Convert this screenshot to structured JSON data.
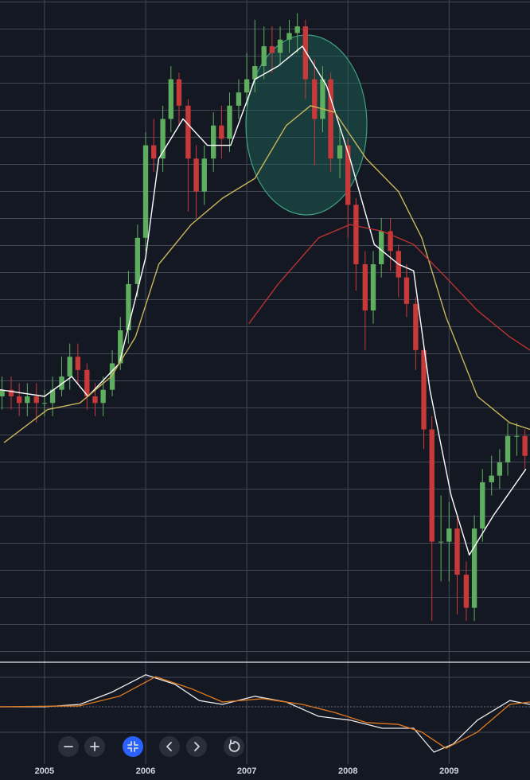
{
  "chart_data": [
    {
      "type": "candlestick",
      "x": [
        2004.58,
        2004.67,
        2004.75,
        2004.83,
        2004.92,
        2005.0,
        2005.08,
        2005.17,
        2005.25,
        2005.33,
        2005.42,
        2005.5,
        2005.58,
        2005.67,
        2005.75,
        2005.83,
        2005.92,
        2006.0,
        2006.08,
        2006.17,
        2006.25,
        2006.33,
        2006.42,
        2006.5,
        2006.58,
        2006.67,
        2006.75,
        2006.83,
        2006.92,
        2007.0,
        2007.08,
        2007.17,
        2007.25,
        2007.33,
        2007.42,
        2007.5,
        2007.58,
        2007.67,
        2007.75,
        2007.83,
        2007.92,
        2008.0,
        2008.08,
        2008.17,
        2008.25,
        2008.33,
        2008.42,
        2008.5,
        2008.58,
        2008.67,
        2008.75,
        2008.83,
        2008.92,
        2009.0,
        2009.08,
        2009.17,
        2009.25,
        2009.33,
        2009.42,
        2009.5,
        2009.58,
        2009.67,
        2009.75
      ],
      "open": [
        40,
        41,
        40,
        39,
        40,
        39,
        39,
        41,
        43,
        46,
        44,
        40,
        39,
        41,
        45,
        50,
        57,
        64,
        78,
        76,
        82,
        88,
        84,
        76,
        71,
        76,
        81,
        79,
        84,
        86,
        88,
        90,
        93,
        92,
        94,
        95,
        96,
        88,
        82,
        88,
        76,
        78,
        69,
        60,
        53,
        60,
        65,
        62,
        58,
        54,
        47,
        35,
        18,
        18,
        20,
        13,
        8,
        20,
        27,
        28,
        30,
        34,
        34
      ],
      "high": [
        43,
        43,
        42,
        42,
        42,
        41,
        43,
        46,
        48,
        48,
        45,
        42,
        43,
        47,
        52,
        59,
        66,
        80,
        82,
        84,
        90,
        89,
        85,
        78,
        78,
        83,
        84,
        86,
        88,
        92,
        97,
        96,
        96,
        96,
        97,
        98,
        97,
        91,
        90,
        89,
        81,
        79,
        70,
        62,
        62,
        67,
        67,
        63,
        60,
        55,
        48,
        37,
        25,
        24,
        22,
        15,
        22,
        29,
        31,
        32,
        36,
        36,
        35
      ],
      "low": [
        38,
        38,
        37,
        37,
        36,
        37,
        37,
        40,
        41,
        42,
        38,
        37,
        37,
        40,
        44,
        48,
        55,
        62,
        74,
        74,
        80,
        81,
        68,
        67,
        69,
        74,
        76,
        77,
        82,
        84,
        86,
        88,
        89,
        90,
        92,
        92,
        85,
        75,
        80,
        74,
        73,
        64,
        56,
        47,
        51,
        58,
        59,
        55,
        52,
        44,
        32,
        6,
        12,
        12,
        7,
        6,
        6,
        18,
        25,
        26,
        28,
        31,
        29
      ],
      "close": [
        41,
        40,
        39,
        40,
        39,
        39,
        41,
        43,
        46,
        44,
        40,
        39,
        41,
        45,
        50,
        57,
        64,
        78,
        76,
        82,
        88,
        84,
        76,
        71,
        76,
        81,
        79,
        84,
        86,
        88,
        90,
        93,
        92,
        94,
        95,
        96,
        88,
        82,
        88,
        76,
        78,
        69,
        60,
        53,
        60,
        65,
        62,
        58,
        54,
        47,
        35,
        18,
        18,
        20,
        13,
        8,
        20,
        27,
        28,
        30,
        34,
        34,
        31
      ],
      "up_color": "#5fae5f",
      "down_color": "#c83a3a",
      "series": [
        {
          "color": "#ffffff",
          "x": [
            2004.56,
            2005.0,
            2005.27,
            2005.43,
            2005.74,
            2006.0,
            2006.13,
            2006.37,
            2006.61,
            2006.84,
            2007.08,
            2007.31,
            2007.55,
            2007.79,
            2008.02,
            2008.26,
            2008.5,
            2008.65,
            2008.81,
            2009.02,
            2009.2,
            2009.44,
            2009.76
          ],
          "values": [
            41,
            40,
            43,
            40,
            45,
            61,
            76,
            82,
            78,
            78,
            88,
            90,
            93,
            87,
            76,
            63,
            60,
            59,
            41,
            25,
            16,
            22,
            29
          ]
        },
        {
          "color": "#c9b55a",
          "x": [
            2004.6,
            2005.03,
            2005.35,
            2005.66,
            2005.9,
            2006.13,
            2006.45,
            2006.76,
            2007.08,
            2007.39,
            2007.63,
            2007.87,
            2008.18,
            2008.5,
            2008.73,
            2008.97,
            2009.28,
            2009.6,
            2009.8
          ],
          "values": [
            33,
            38,
            39,
            43,
            49,
            60,
            66,
            70,
            73,
            81,
            84,
            83,
            76,
            71,
            64,
            52,
            40,
            36,
            35
          ]
        },
        {
          "color": "#b83232",
          "x": [
            2007.02,
            2007.31,
            2007.71,
            2008.02,
            2008.34,
            2008.65,
            2008.97,
            2009.28,
            2009.6,
            2009.8
          ],
          "values": [
            51,
            57,
            64,
            66,
            65,
            63,
            58,
            53,
            49,
            47
          ]
        }
      ],
      "xlim": [
        2004.56,
        2009.8
      ],
      "ylim": [
        0,
        100
      ],
      "xticks": [
        2005,
        2006,
        2007,
        2008,
        2009
      ],
      "grid": true
    },
    {
      "type": "line",
      "series": [
        {
          "color": "#e8e8e8",
          "x": [
            2004.56,
            2005.0,
            2005.35,
            2005.66,
            2006.0,
            2006.29,
            2006.53,
            2006.76,
            2007.08,
            2007.39,
            2007.71,
            2008.02,
            2008.34,
            2008.65,
            2008.85,
            2009.04,
            2009.28,
            2009.6,
            2009.8
          ],
          "values": [
            0,
            0,
            0.5,
            3,
            6.7,
            4.7,
            1.3,
            0.5,
            2.2,
            1,
            -2,
            -2.8,
            -4.5,
            -4.5,
            -9.5,
            -7.8,
            -2.8,
            1.3,
            0.5
          ]
        },
        {
          "color": "#e07a1f",
          "x": [
            2004.56,
            2005.35,
            2005.74,
            2006.1,
            2006.45,
            2006.76,
            2007.16,
            2007.55,
            2007.87,
            2008.18,
            2008.5,
            2008.73,
            2008.97,
            2009.28,
            2009.6,
            2009.8
          ],
          "values": [
            0,
            0.2,
            2.2,
            6.3,
            3.8,
            1,
            1.7,
            0.5,
            -1.2,
            -3.3,
            -3.7,
            -5.3,
            -8.7,
            -5.3,
            0.5,
            1
          ]
        }
      ],
      "xlim": [
        2004.56,
        2009.8
      ],
      "ylim": [
        -12,
        9
      ]
    }
  ]
}
